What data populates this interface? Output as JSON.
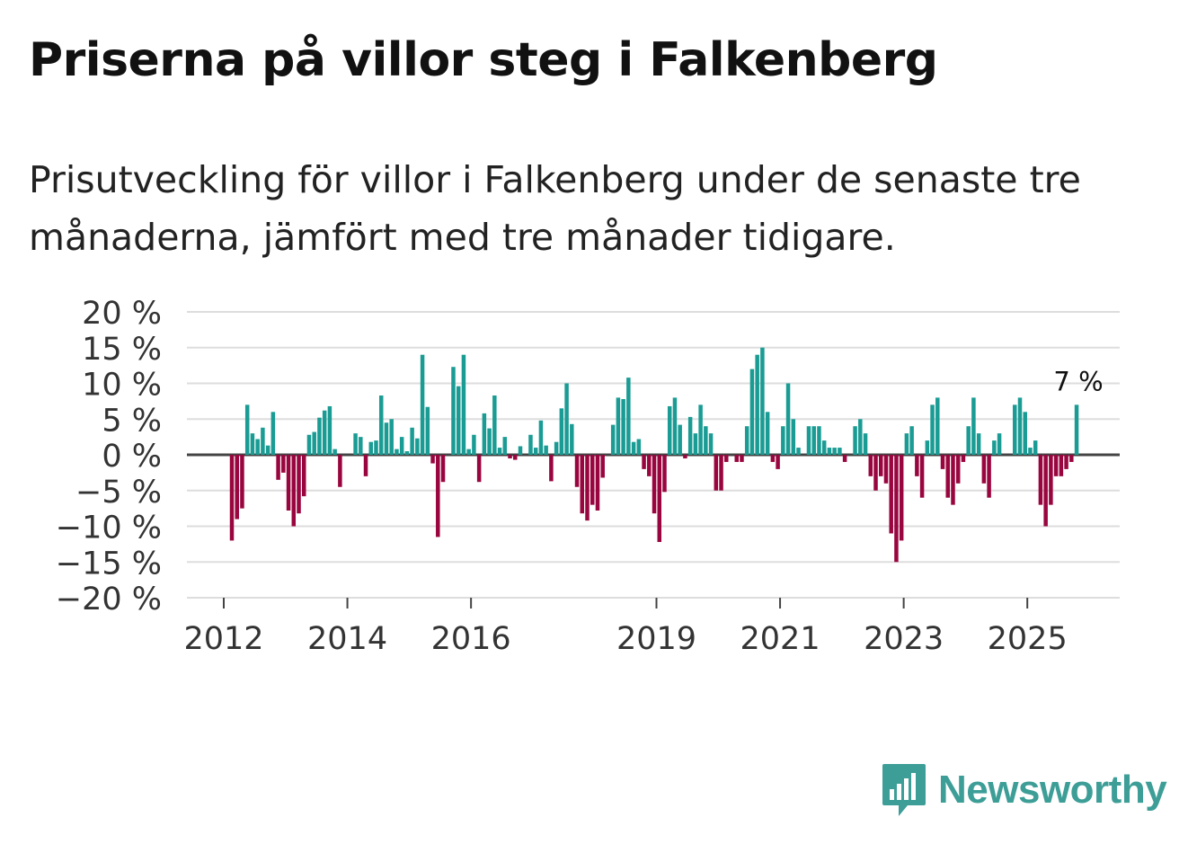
{
  "title": "Priserna på villor steg i Falkenberg",
  "subtitle": "Prisutveckling för villor i Falkenberg under de senaste tre månaderna, jämfört med tre månader tidigare.",
  "brand": {
    "name": "Newsworthy",
    "color": "#3d9e97",
    "icon": "bar-chart-speech-bubble-icon"
  },
  "colors": {
    "positive": "#1a9c94",
    "negative": "#99063f",
    "grid": "#dddddd",
    "zero": "#444444",
    "text": "#333333"
  },
  "chart_data": {
    "type": "bar",
    "title": "Priserna på villor steg i Falkenberg",
    "xlabel": "",
    "ylabel": "",
    "ylim": [
      -20,
      20
    ],
    "yticks": [
      20,
      15,
      10,
      5,
      0,
      -5,
      -10,
      -15,
      -20
    ],
    "ytick_labels": [
      "20 %",
      "15 %",
      "10 %",
      "5 %",
      "0 %",
      "−5 %",
      "−10 %",
      "−15 %",
      "−20 %"
    ],
    "x_start": 2012.0,
    "x_step_months": 1,
    "xticks": [
      2012,
      2014,
      2016,
      2019,
      2021,
      2023,
      2025
    ],
    "annotation": {
      "label": "7 %",
      "target": "last"
    },
    "values": [
      -12,
      -9,
      -7.5,
      7,
      3,
      2.2,
      3.8,
      1.3,
      6,
      -3.5,
      -2.5,
      -7.8,
      -10,
      -8.2,
      -5.8,
      2.8,
      3.2,
      5.2,
      6.2,
      6.8,
      0.8,
      -4.5,
      0,
      0,
      3,
      2.5,
      -3,
      1.8,
      2,
      8.3,
      4.5,
      5,
      0.8,
      2.5,
      0.5,
      3.8,
      2.3,
      14,
      6.7,
      -1.2,
      -11.5,
      -3.8,
      0,
      12.3,
      9.6,
      14,
      0.8,
      2.8,
      -3.8,
      5.8,
      3.7,
      8.3,
      1,
      2.5,
      -0.5,
      -0.7,
      1.2,
      0,
      2.8,
      1,
      4.8,
      1.3,
      -3.7,
      1.8,
      6.5,
      10,
      4.3,
      -4.5,
      -8.2,
      -9.2,
      -7,
      -7.8,
      -3.2,
      0,
      4.2,
      8,
      7.8,
      10.8,
      1.8,
      2.2,
      -2,
      -3,
      -8.2,
      -12.2,
      -5.2,
      6.8,
      8,
      4.2,
      -0.5,
      5.3,
      3,
      7,
      4,
      3,
      -5,
      -5,
      -1,
      0,
      -1,
      -1,
      4,
      12,
      14,
      15,
      6,
      -1,
      -2,
      4,
      10,
      5,
      1,
      0,
      4,
      4,
      4,
      2,
      1,
      1,
      1,
      -1,
      0,
      4,
      5,
      3,
      -3,
      -5,
      -3,
      -4,
      -11,
      -15,
      -12,
      3,
      4,
      -3,
      -6,
      2,
      7,
      8,
      -2,
      -6,
      -7,
      -4,
      -1,
      4,
      8,
      3,
      -4,
      -6,
      2,
      3,
      0,
      0,
      7,
      8,
      6,
      1,
      2,
      -7,
      -10,
      -7,
      -3,
      -3,
      -2,
      -1,
      7
    ]
  }
}
